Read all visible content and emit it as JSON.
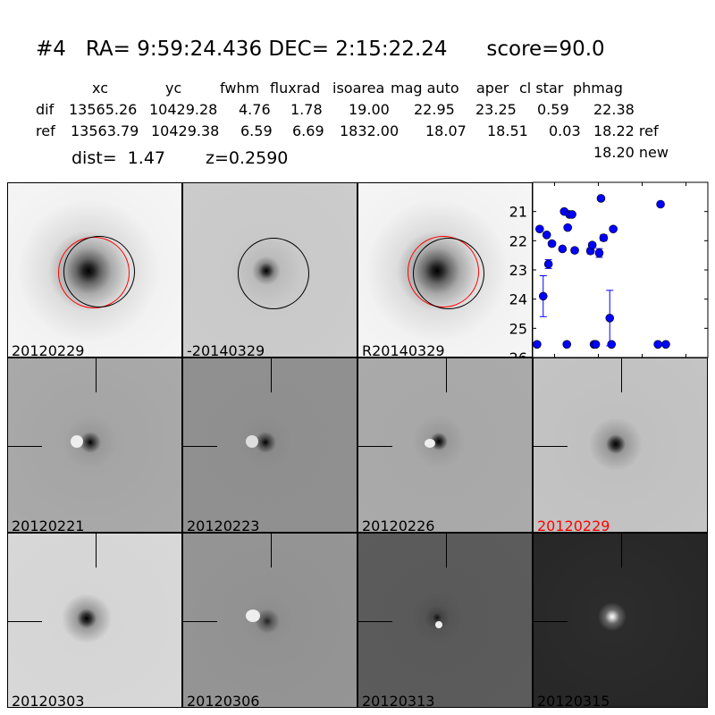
{
  "header": {
    "title": "#4   RA= 9:59:24.436 DEC= 2:15:22.24      score=90.0",
    "columns": [
      "xc",
      "yc",
      "fwhm",
      "fluxrad",
      "isoarea",
      "mag auto",
      "aper",
      "cl star",
      "phmag"
    ],
    "rows": [
      {
        "label": "dif",
        "values": [
          "13565.26",
          "10429.28",
          "4.76",
          "1.78",
          "19.00",
          "22.95",
          "23.25",
          "0.59",
          "22.38"
        ]
      },
      {
        "label": "ref",
        "values": [
          "13563.79",
          "10429.38",
          "6.59",
          "6.69",
          "1832.00",
          "18.07",
          "18.51",
          "0.03",
          "18.22 ref"
        ]
      }
    ],
    "extra_phmag": "18.20 new",
    "dist": "dist=  1.47",
    "z": "z=0.2590"
  },
  "panels": [
    {
      "label": "20120229",
      "label_color": "#000000"
    },
    {
      "label": "-20140329",
      "label_color": "#000000"
    },
    {
      "label": "R20140329",
      "label_color": "#000000"
    },
    {
      "label": "20120221",
      "label_color": "#000000"
    },
    {
      "label": "20120223",
      "label_color": "#000000"
    },
    {
      "label": "20120226",
      "label_color": "#000000"
    },
    {
      "label": "20120229",
      "label_color": "#ff0000"
    },
    {
      "label": "20120303",
      "label_color": "#000000"
    },
    {
      "label": "20120306",
      "label_color": "#000000"
    },
    {
      "label": "20120313",
      "label_color": "#000000"
    },
    {
      "label": "20120315",
      "label_color": "#000000"
    }
  ],
  "chart_data": {
    "type": "scatter",
    "xlim": [
      -75,
      125
    ],
    "ylim": [
      26,
      20
    ],
    "y_inverted": true,
    "xticks": [
      -50,
      0,
      50,
      100
    ],
    "yticks": [
      21,
      22,
      23,
      24,
      25,
      26
    ],
    "grid": false,
    "color": "#0000ff",
    "points": [
      {
        "x": -70,
        "y": 25.55,
        "err": 0.05
      },
      {
        "x": -36,
        "y": 25.55,
        "err": 0.05
      },
      {
        "x": -5,
        "y": 25.55,
        "err": 0.05
      },
      {
        "x": -3,
        "y": 25.55,
        "err": 0.05
      },
      {
        "x": 15,
        "y": 25.55,
        "err": 0.05
      },
      {
        "x": 68,
        "y": 25.55,
        "err": 0.05
      },
      {
        "x": 77,
        "y": 25.55,
        "err": 0.05
      },
      {
        "x": -67,
        "y": 21.6,
        "err": 0
      },
      {
        "x": -59,
        "y": 21.8,
        "err": 0
      },
      {
        "x": -53,
        "y": 22.1,
        "err": 0.08
      },
      {
        "x": -57,
        "y": 22.8,
        "err": 0.15
      },
      {
        "x": -63,
        "y": 23.9,
        "err": 0.7
      },
      {
        "x": -39,
        "y": 21.0,
        "err": 0
      },
      {
        "x": -33,
        "y": 21.1,
        "err": 0
      },
      {
        "x": -30,
        "y": 21.1,
        "err": 0
      },
      {
        "x": -35,
        "y": 21.55,
        "err": 0
      },
      {
        "x": -41,
        "y": 22.28,
        "err": 0
      },
      {
        "x": -27,
        "y": 22.33,
        "err": 0.08
      },
      {
        "x": -9,
        "y": 22.35,
        "err": 0.1
      },
      {
        "x": -7,
        "y": 22.15,
        "err": 0.08
      },
      {
        "x": 1,
        "y": 22.42,
        "err": 0.15
      },
      {
        "x": 6,
        "y": 21.9,
        "err": 0.1
      },
      {
        "x": 3,
        "y": 20.55,
        "err": 0
      },
      {
        "x": 17,
        "y": 21.6,
        "err": 0
      },
      {
        "x": 13,
        "y": 24.65,
        "err": 0.95
      },
      {
        "x": 71,
        "y": 20.75,
        "err": 0
      }
    ]
  }
}
